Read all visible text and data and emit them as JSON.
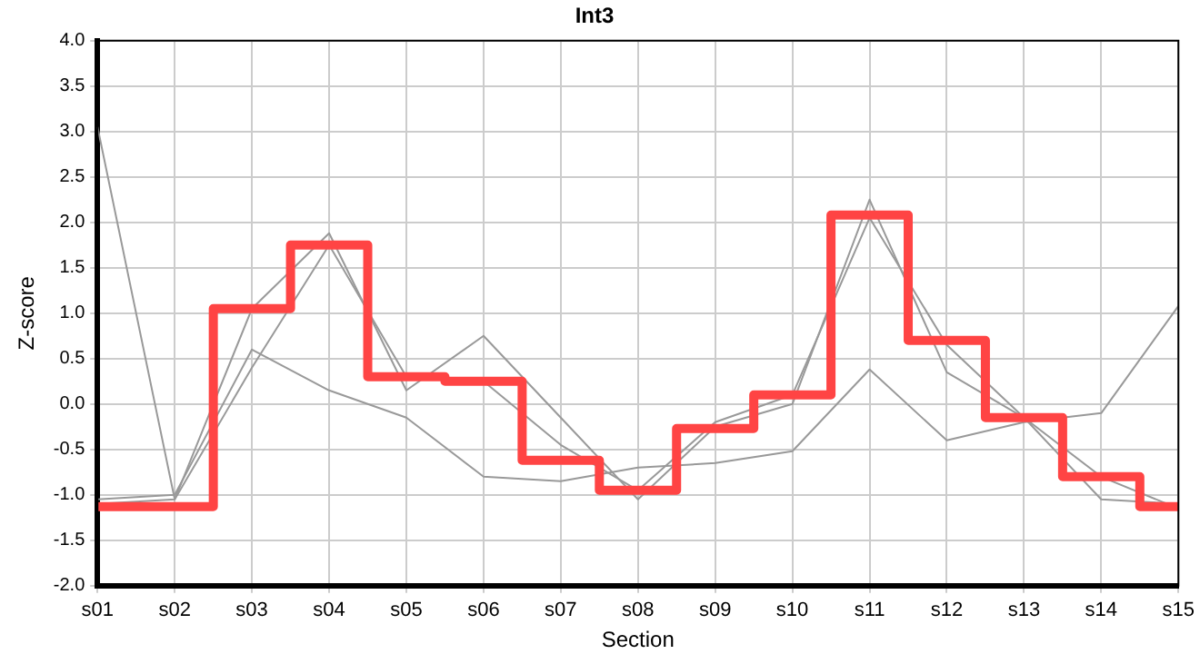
{
  "chart_data": {
    "type": "line",
    "title": "Int3",
    "xlabel": "Section",
    "ylabel": "Z-score",
    "categories": [
      "s01",
      "s02",
      "s03",
      "s04",
      "s05",
      "s06",
      "s07",
      "s08",
      "s09",
      "s10",
      "s11",
      "s12",
      "s13",
      "s14",
      "s15"
    ],
    "series": [
      {
        "color": "#999999",
        "values": [
          3.05,
          -1.05,
          1.05,
          1.88,
          0.15,
          0.75,
          -0.15,
          -1.05,
          -0.25,
          0.0,
          2.25,
          0.35,
          -0.15,
          -1.05,
          -1.1
        ]
      },
      {
        "color": "#999999",
        "values": [
          -1.1,
          -1.05,
          0.4,
          1.75,
          0.3,
          0.25,
          -0.45,
          -0.95,
          -0.2,
          0.1,
          2.05,
          0.65,
          -0.15,
          -0.8,
          -1.15
        ]
      },
      {
        "color": "#999999",
        "values": [
          -1.05,
          -1.0,
          0.6,
          0.15,
          -0.15,
          -0.8,
          -0.85,
          -0.7,
          -0.65,
          -0.52,
          0.38,
          -0.4,
          -0.2,
          -0.1,
          1.08
        ]
      },
      {
        "type": "step",
        "color": "#ff4444",
        "values": [
          -1.13,
          -1.13,
          1.05,
          1.75,
          0.3,
          0.25,
          -0.62,
          -0.95,
          -0.27,
          0.1,
          2.08,
          0.7,
          -0.15,
          -0.8,
          -1.13
        ]
      }
    ],
    "ylim": [
      -2,
      4
    ],
    "yticks": [
      {
        "value": -2,
        "label": "-2.0"
      },
      {
        "value": -1.5,
        "label": "-1.5"
      },
      {
        "value": -1,
        "label": "-1.0"
      },
      {
        "value": -0.5,
        "label": "-0.5"
      },
      {
        "value": 0,
        "label": "0.0"
      },
      {
        "value": 0.5,
        "label": "0.5"
      },
      {
        "value": 1,
        "label": "1.0"
      },
      {
        "value": 1.5,
        "label": "1.5"
      },
      {
        "value": 2,
        "label": "2.0"
      },
      {
        "value": 2.5,
        "label": "2.5"
      },
      {
        "value": 3,
        "label": "3.0"
      },
      {
        "value": 3.5,
        "label": "3.5"
      },
      {
        "value": 4,
        "label": "4.0"
      }
    ],
    "grid": true,
    "legend": false,
    "marker": "none"
  }
}
